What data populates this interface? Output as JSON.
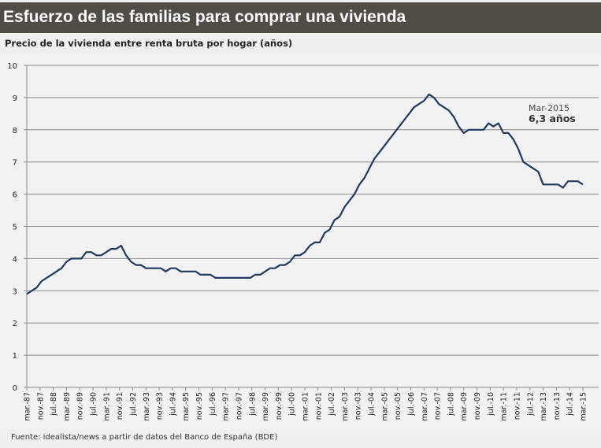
{
  "header": {
    "title": "Esfuerzo de las familias  para comprar una vivienda"
  },
  "footer": {
    "source": "Fuente: idealista/news a partir de datos del Banco de España (BDE)"
  },
  "chart_data": {
    "type": "line",
    "title": "",
    "subtitle": "Precio de la vivienda entre renta bruta por hogar (años)",
    "ylim": [
      0,
      10
    ],
    "yticks": [
      0,
      1,
      2,
      3,
      4,
      5,
      6,
      7,
      8,
      9,
      10
    ],
    "grid": true,
    "line_color": "#1f3a60",
    "xtick_labels": [
      "mar.-87",
      "nov.-87",
      "jul.-88",
      "mar.-89",
      "nov.-89",
      "jul.-90",
      "mar.-91",
      "nov.-91",
      "jul.-92",
      "mar.-93",
      "nov.-93",
      "jul.-94",
      "mar.-95",
      "nov.-95",
      "jul.-96",
      "mar.-97",
      "nov.-97",
      "jul.-98",
      "mar.-99",
      "nov.-99",
      "jul.-00",
      "mar.-01",
      "nov.-01",
      "jul.-02",
      "mar.-03",
      "nov.-03",
      "jul.-04",
      "mar.-05",
      "nov.-05",
      "jul.-06",
      "mar.-07",
      "nov.-07",
      "jul.-08",
      "mar.-09",
      "nov.-09",
      "jul.-10",
      "mar.-11",
      "nov.-11",
      "jul.-12",
      "mar.-13",
      "nov.-13",
      "jul.-14",
      "mar.-15"
    ],
    "series": [
      {
        "values": [
          2.9,
          3.0,
          3.1,
          3.3,
          3.4,
          3.5,
          3.6,
          3.7,
          3.9,
          4.0,
          4.0,
          4.0,
          4.2,
          4.2,
          4.1,
          4.1,
          4.2,
          4.3,
          4.3,
          4.4,
          4.1,
          3.9,
          3.8,
          3.8,
          3.7,
          3.7,
          3.7,
          3.7,
          3.6,
          3.7,
          3.7,
          3.6,
          3.6,
          3.6,
          3.6,
          3.5,
          3.5,
          3.5,
          3.4,
          3.4,
          3.4,
          3.4,
          3.4,
          3.4,
          3.4,
          3.4,
          3.5,
          3.5,
          3.6,
          3.7,
          3.7,
          3.8,
          3.8,
          3.9,
          4.1,
          4.1,
          4.2,
          4.4,
          4.5,
          4.5,
          4.8,
          4.9,
          5.2,
          5.3,
          5.6,
          5.8,
          6.0,
          6.3,
          6.5,
          6.8,
          7.1,
          7.3,
          7.5,
          7.7,
          7.9,
          8.1,
          8.3,
          8.5,
          8.7,
          8.8,
          8.9,
          9.1,
          9.0,
          8.8,
          8.7,
          8.6,
          8.4,
          8.1,
          7.9,
          8.0,
          8.0,
          8.0,
          8.0,
          8.2,
          8.1,
          8.2,
          7.9,
          7.9,
          7.7,
          7.4,
          7.0,
          6.9,
          6.8,
          6.7,
          6.3,
          6.3,
          6.3,
          6.3,
          6.2,
          6.4,
          6.4,
          6.4,
          6.3
        ]
      }
    ],
    "annotations": [
      {
        "date": "Mar-2015",
        "value_label": "6,3 años"
      }
    ]
  }
}
